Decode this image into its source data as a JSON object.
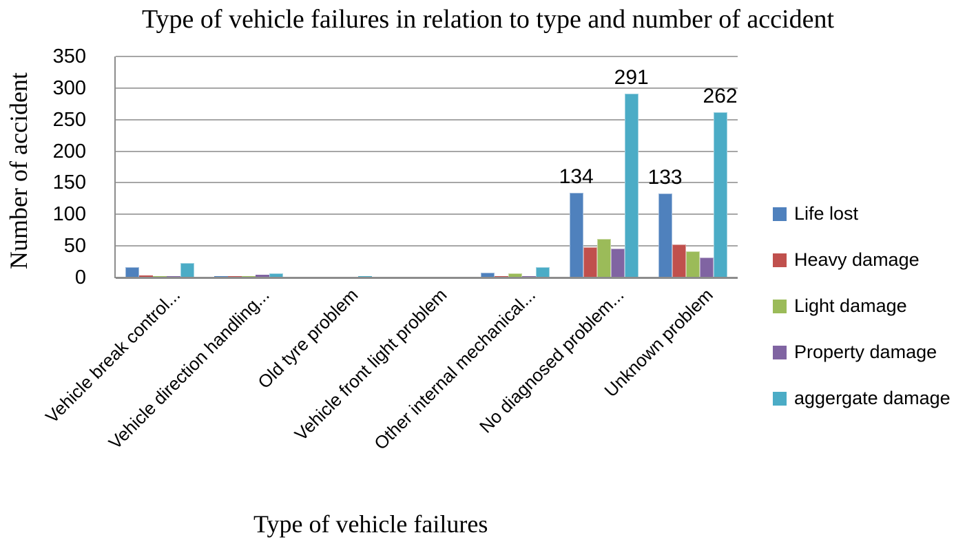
{
  "chart_data": {
    "type": "bar",
    "title": "Type of vehicle failures in relation to type and number of accident",
    "xlabel": "Type of vehicle failures",
    "ylabel": "Number of accident",
    "ylim": [
      0,
      350
    ],
    "ytick_step": 50,
    "yticks": [
      "0",
      "50",
      "100",
      "150",
      "200",
      "250",
      "300",
      "350"
    ],
    "grid": true,
    "legend_position": "right",
    "categories": [
      "Vehicle break control...",
      "Vehicle direction handling...",
      "Old tyre problem",
      "Vehicle front light problem",
      "Other internal mechanical...",
      "No diagnosed problem...",
      "Unknown problem"
    ],
    "series": [
      {
        "name": "Life lost",
        "color": "#4F81BD",
        "values": [
          16,
          2,
          0,
          0,
          8,
          134,
          133
        ]
      },
      {
        "name": "Heavy damage",
        "color": "#C0504D",
        "values": [
          3,
          2,
          0,
          0,
          2,
          48,
          52
        ]
      },
      {
        "name": "Light damage",
        "color": "#9BBB59",
        "values": [
          2,
          1,
          0,
          0,
          6,
          61,
          41
        ]
      },
      {
        "name": "Property damage",
        "color": "#8064A2",
        "values": [
          1,
          4,
          0,
          0,
          1,
          46,
          32
        ]
      },
      {
        "name": "aggergate damage",
        "color": "#4BACC6",
        "values": [
          23,
          7,
          2,
          0,
          16,
          291,
          262
        ]
      }
    ],
    "data_labels": [
      {
        "series": "Life lost",
        "category_index": 5,
        "text": "134"
      },
      {
        "series": "aggergate damage",
        "category_index": 5,
        "text": "291"
      },
      {
        "series": "Life lost",
        "category_index": 6,
        "text": "133"
      },
      {
        "series": "aggergate damage",
        "category_index": 6,
        "text": "262"
      }
    ],
    "colors": {
      "gridline": "#A6A6A6",
      "axis_line": "#8C8C8C",
      "text": "#000000"
    }
  }
}
